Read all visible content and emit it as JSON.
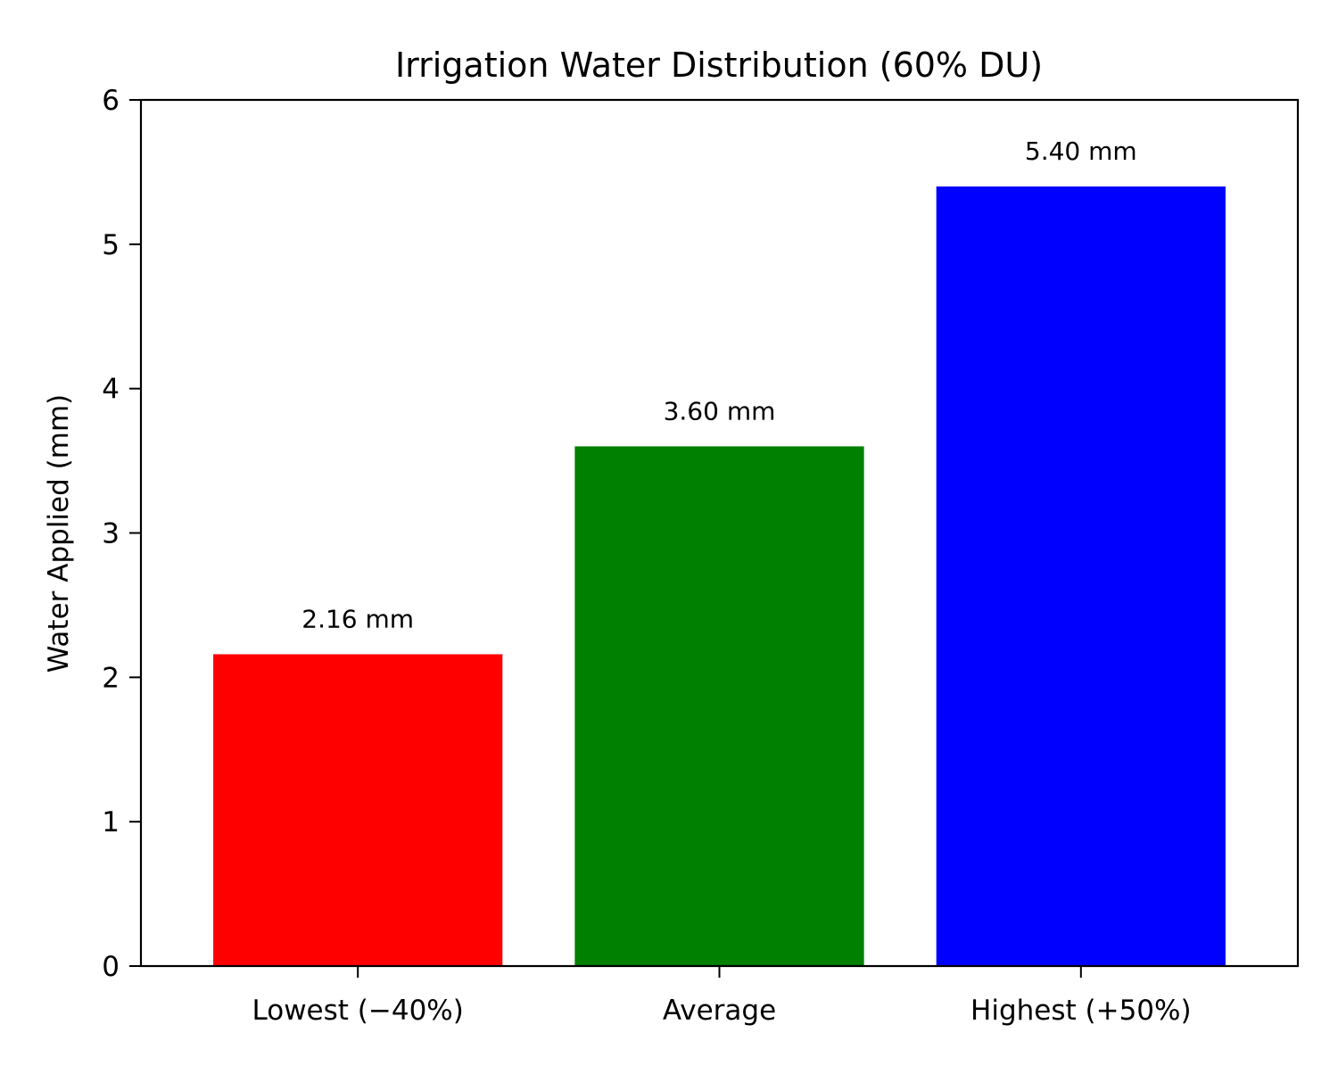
{
  "chart_data": {
    "type": "bar",
    "title": "Irrigation Water Distribution (60% DU)",
    "xlabel": "",
    "ylabel": "Water Applied (mm)",
    "categories": [
      "Lowest (−40%)",
      "Average",
      "Highest (+50%)"
    ],
    "values": [
      2.16,
      3.6,
      5.4
    ],
    "value_labels": [
      "2.16 mm",
      "3.60 mm",
      "5.40 mm"
    ],
    "colors": [
      "#ff0000",
      "#008000",
      "#0000ff"
    ],
    "ylim": [
      0,
      6
    ],
    "yticks": [
      0,
      1,
      2,
      3,
      4,
      5,
      6
    ],
    "grid": false,
    "legend": "none"
  }
}
